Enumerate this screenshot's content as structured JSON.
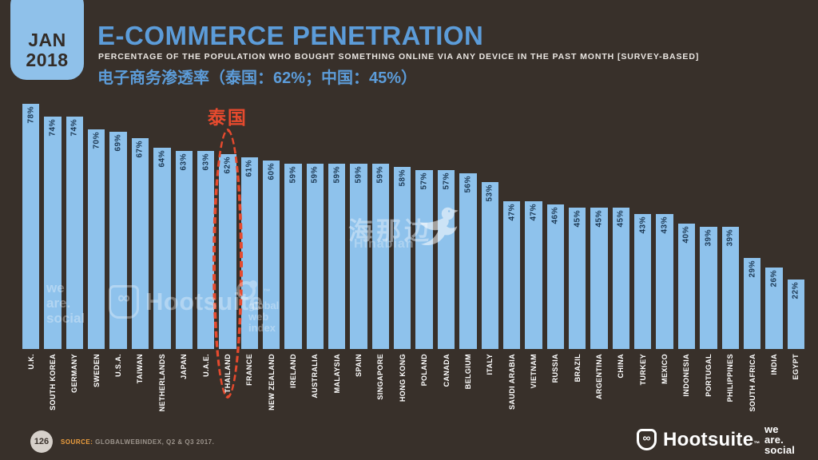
{
  "header": {
    "date_badge": {
      "month": "JAN",
      "year": "2018"
    },
    "title": "E-COMMERCE PENETRATION",
    "subtitle": "PERCENTAGE OF THE POPULATION WHO BOUGHT SOMETHING ONLINE VIA ANY DEVICE IN THE PAST MONTH [SURVEY-BASED]",
    "subtitle_zh": "电子商务渗透率（泰国：62%；中国：45%）"
  },
  "chart_data": {
    "type": "bar",
    "title": "E-COMMERCE PENETRATION",
    "categories": [
      "U.K.",
      "SOUTH KOREA",
      "GERMANY",
      "SWEDEN",
      "U.S.A.",
      "TAIWAN",
      "NETHERLANDS",
      "JAPAN",
      "U.A.E.",
      "THAILAND",
      "FRANCE",
      "NEW ZEALAND",
      "IRELAND",
      "AUSTRALIA",
      "MALAYSIA",
      "SPAIN",
      "SINGAPORE",
      "HONG KONG",
      "POLAND",
      "CANADA",
      "BELGIUM",
      "ITALY",
      "SAUDI ARABIA",
      "VIETNAM",
      "RUSSIA",
      "BRAZIL",
      "ARGENTINA",
      "CHINA",
      "TURKEY",
      "MEXICO",
      "INDONESIA",
      "PORTUGAL",
      "PHILIPPINES",
      "SOUTH AFRICA",
      "INDIA",
      "EGYPT"
    ],
    "values": [
      78,
      74,
      74,
      70,
      69,
      67,
      64,
      63,
      63,
      62,
      61,
      60,
      59,
      59,
      59,
      59,
      59,
      58,
      57,
      57,
      56,
      53,
      47,
      47,
      46,
      45,
      45,
      45,
      43,
      43,
      40,
      39,
      39,
      29,
      26,
      22
    ],
    "value_suffix": "%",
    "ylim": [
      0,
      78
    ],
    "grid": false,
    "legend": false,
    "bar_color": "#8EC2EC",
    "value_label_color": "#1E3A55",
    "category_label_color": "#FFFFFF",
    "highlight": {
      "category": "THAILAND",
      "annotation": "泰国",
      "color": "#E64A2E"
    }
  },
  "watermarks": {
    "hinabian": {
      "cn": "海那边",
      "en": "Hinabian"
    },
    "we_are_social": {
      "line1": "we",
      "line2": "are.",
      "line3": "social"
    },
    "hootsuite": {
      "wordmark": "Hootsuite",
      "tm": "™"
    },
    "global_web_index": {
      "line1": "global",
      "line2": "web",
      "line3": "index"
    }
  },
  "footer": {
    "page_number": "126",
    "source_label": "SOURCE:",
    "source_text": "GLOBALWEBINDEX, Q2 & Q3 2017.",
    "hootsuite": {
      "wordmark": "Hootsuite",
      "tm": "™"
    },
    "we_are_social": {
      "line1": "we",
      "line2": "are.",
      "line3": "social"
    }
  },
  "colors": {
    "background": "#38302A",
    "title_blue": "#5C9CD9",
    "badge_blue": "#8FC1EA",
    "bar_blue": "#8EC2EC",
    "value_navy": "#1E3A55",
    "highlight_red": "#E64A2E",
    "source_orange": "#F0A03E",
    "page_circle_gray": "#D6D0CA"
  }
}
